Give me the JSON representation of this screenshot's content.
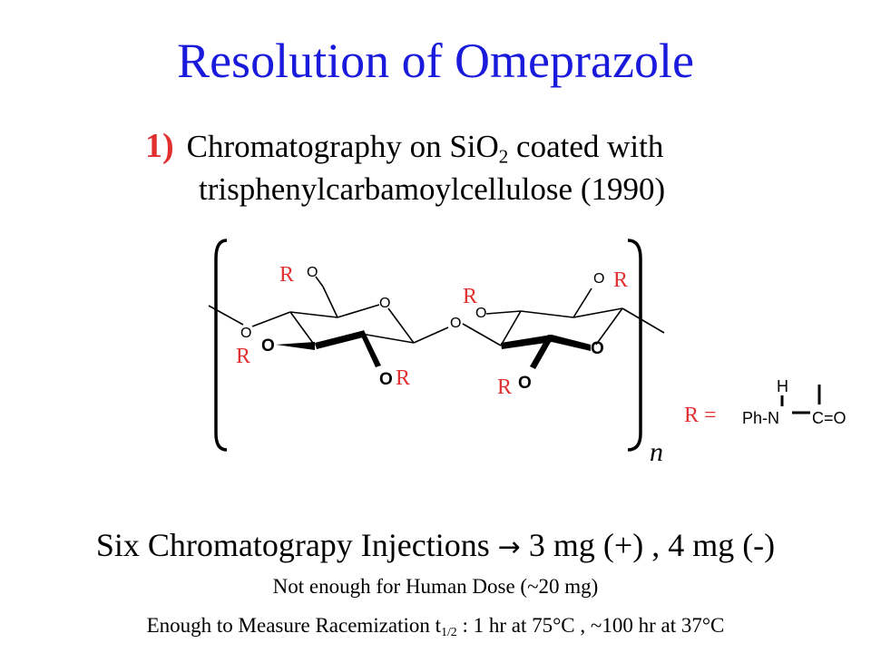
{
  "title": "Resolution of Omeprazole",
  "point": {
    "number": "1)",
    "line1_pre": "Chromatography on SiO",
    "line1_sub": "2",
    "line1_post": " coated with",
    "line2": "trisphenylcarbamoylcellulose   (1990)"
  },
  "structure": {
    "r": "R",
    "o_small": "O",
    "o_bold": "O",
    "n": "n",
    "r_eq": "R =",
    "h": "H",
    "phn": "Ph-N",
    "co": "C=O"
  },
  "injections": {
    "pre": "Six Chromatograpy Injections ",
    "arrow": "→",
    "post": " 3 mg (+) , 4 mg (-)"
  },
  "not_enough": "Not enough for Human Dose (~20 mg)",
  "enough": {
    "pre": "Enough to Measure Racemization t",
    "sub": "1/2",
    "post": " :  1 hr at 75°C , ~100 hr at 37°C"
  }
}
